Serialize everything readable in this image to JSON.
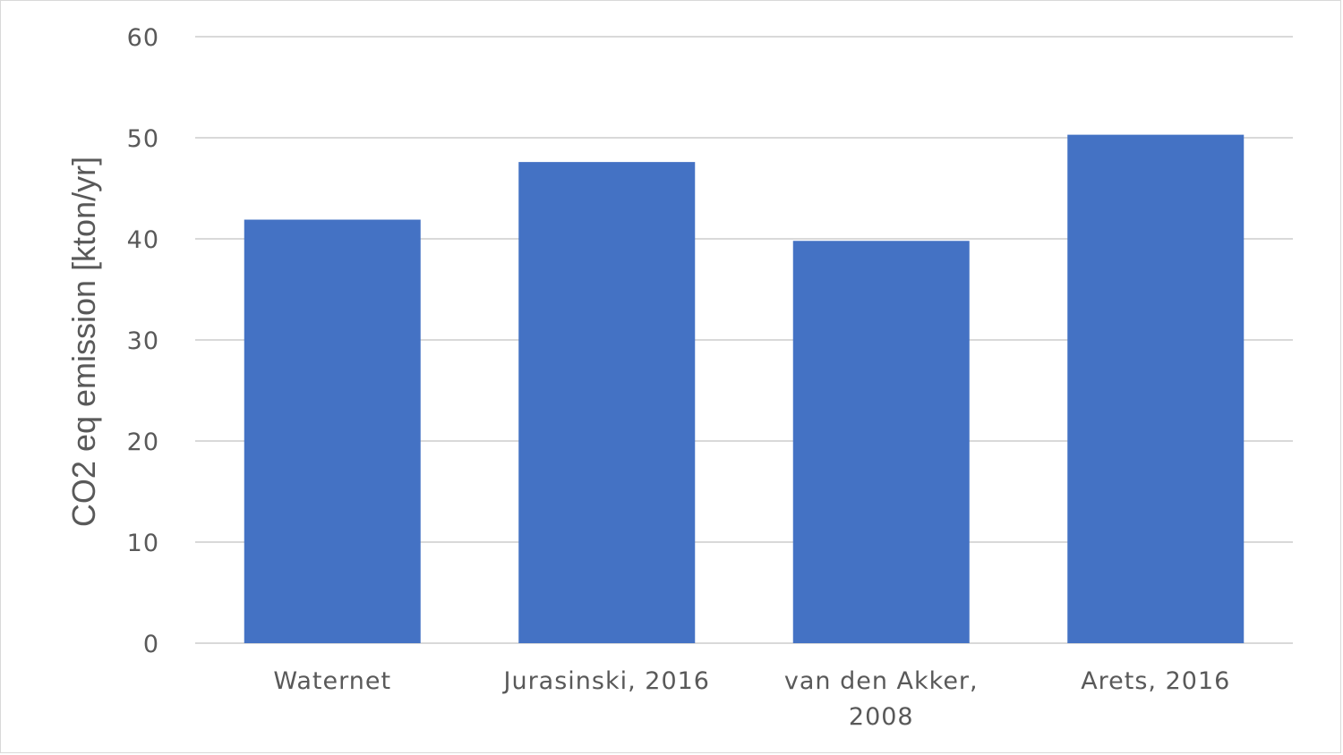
{
  "chart_data": {
    "type": "bar",
    "title": "",
    "xlabel": "",
    "ylabel": "CO2 eq emission [kton/yr]",
    "categories": [
      [
        "Waternet"
      ],
      [
        "Jurasinski, 2016"
      ],
      [
        "van den Akker,",
        "2008"
      ],
      [
        "Arets, 2016"
      ]
    ],
    "values": [
      41.9,
      47.6,
      39.8,
      50.3
    ],
    "ylim": [
      0,
      60
    ],
    "yticks": [
      0,
      10,
      20,
      30,
      40,
      50,
      60
    ],
    "grid": true,
    "legend": "none",
    "bar_color": "#4472C4",
    "grid_color": "#d9d9d9"
  }
}
